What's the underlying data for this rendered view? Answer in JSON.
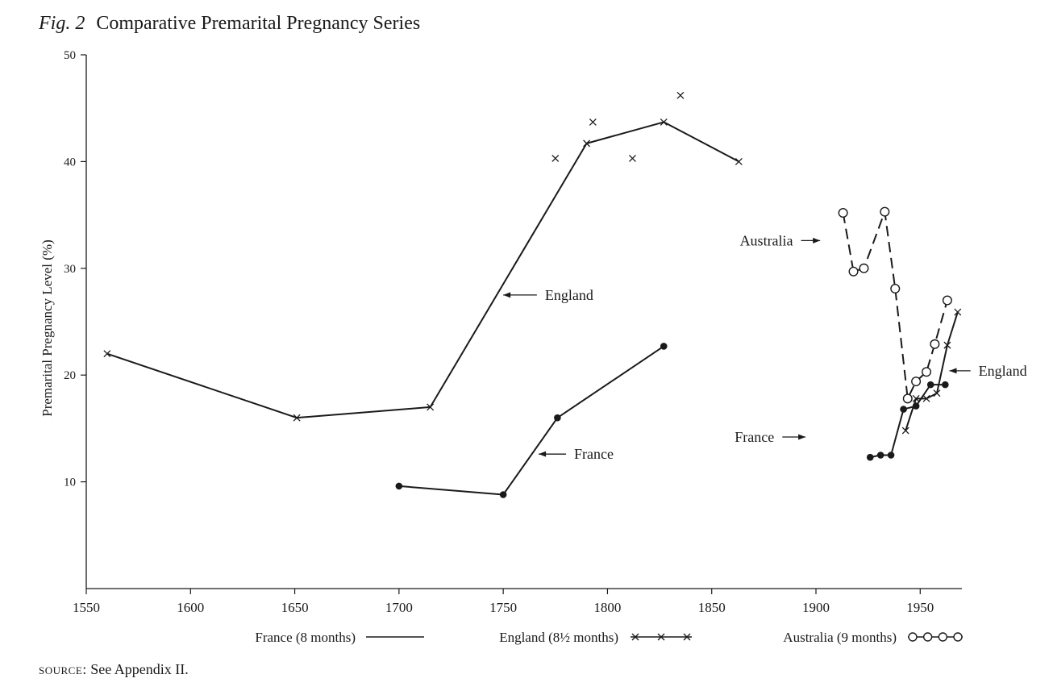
{
  "figure": {
    "fig_label": "Fig. 2",
    "title": "Comparative Premarital Pregnancy Series",
    "source_label": "source:",
    "source_text": "See Appendix II."
  },
  "chart_data": {
    "type": "line",
    "title": "Comparative Premarital Pregnancy Series",
    "xlabel": "",
    "ylabel": "Premarital Pregnancy Level (%)",
    "xlim": [
      1550,
      1970
    ],
    "ylim": [
      0,
      50
    ],
    "x_ticks": [
      1550,
      1600,
      1650,
      1700,
      1750,
      1800,
      1850,
      1900,
      1950
    ],
    "x_tick_labels": [
      "1550",
      "1600",
      "1650",
      "1700",
      "1750",
      "1800",
      "1850",
      "1900",
      "1950"
    ],
    "y_ticks": [
      10,
      20,
      30,
      40,
      50
    ],
    "y_tick_labels": [
      "10",
      "20",
      "30",
      "40",
      "50"
    ],
    "grid": false,
    "legend_position": "bottom",
    "series": [
      {
        "key": "england_early",
        "name": "England (8½ months)",
        "style": "solid-x",
        "points": [
          [
            1560,
            22
          ],
          [
            1651,
            16
          ],
          [
            1715,
            17
          ],
          [
            1790,
            41.7
          ],
          [
            1827,
            43.7
          ],
          [
            1863,
            40
          ]
        ]
      },
      {
        "key": "england_early_scatter",
        "name": "England (8½ months)",
        "style": "x-only",
        "points": [
          [
            1775,
            40.3
          ],
          [
            1793,
            43.7
          ],
          [
            1812,
            40.3
          ],
          [
            1835,
            46.2
          ]
        ]
      },
      {
        "key": "france_early",
        "name": "France (8 months)",
        "style": "solid-dot",
        "points": [
          [
            1700,
            9.6
          ],
          [
            1750,
            8.8
          ],
          [
            1776,
            16
          ],
          [
            1827,
            22.7
          ]
        ]
      },
      {
        "key": "australia",
        "name": "Australia (9 months)",
        "style": "dashed-circle",
        "points": [
          [
            1913,
            35.2
          ],
          [
            1918,
            29.7
          ],
          [
            1923,
            30
          ],
          [
            1933,
            35.3
          ],
          [
            1938,
            28.1
          ],
          [
            1944,
            17.8
          ],
          [
            1948,
            19.4
          ],
          [
            1953,
            20.3
          ],
          [
            1957,
            22.9
          ],
          [
            1963,
            27
          ]
        ]
      },
      {
        "key": "france_modern",
        "name": "France (8 months)",
        "style": "solid-dot",
        "points": [
          [
            1926,
            12.3
          ],
          [
            1931,
            12.5
          ],
          [
            1936,
            12.5
          ],
          [
            1942,
            16.8
          ],
          [
            1948,
            17.1
          ],
          [
            1955,
            19.1
          ],
          [
            1962,
            19.1
          ]
        ]
      },
      {
        "key": "england_modern",
        "name": "England (8½ months)",
        "style": "solid-x",
        "points": [
          [
            1943,
            14.8
          ],
          [
            1948,
            17.8
          ],
          [
            1953,
            17.8
          ],
          [
            1958,
            18.3
          ],
          [
            1963,
            22.8
          ],
          [
            1968,
            25.9
          ]
        ]
      }
    ],
    "annotations": [
      {
        "key": "ann_england_1",
        "text": "England",
        "at": [
          1770,
          27.5
        ],
        "point_to": [
          1750,
          27.5
        ]
      },
      {
        "key": "ann_france_1",
        "text": "France",
        "at": [
          1784,
          12.6
        ],
        "point_to": [
          1767,
          12.6
        ]
      },
      {
        "key": "ann_australia",
        "text": "Australia",
        "at": [
          1889,
          32.6
        ],
        "point_to": [
          1902,
          32.6
        ]
      },
      {
        "key": "ann_england_2",
        "text": "England",
        "at": [
          1978,
          20.4
        ],
        "point_to": [
          1964,
          20.4
        ]
      },
      {
        "key": "ann_france_2",
        "text": "France",
        "at": [
          1880,
          14.2
        ],
        "point_to": [
          1895,
          14.2
        ]
      }
    ],
    "legend": [
      {
        "label": "France (8 months)",
        "style": "solid"
      },
      {
        "label": "England (8½ months)",
        "style": "solid-x"
      },
      {
        "label": "Australia (9 months)",
        "style": "solid-circle"
      }
    ]
  }
}
